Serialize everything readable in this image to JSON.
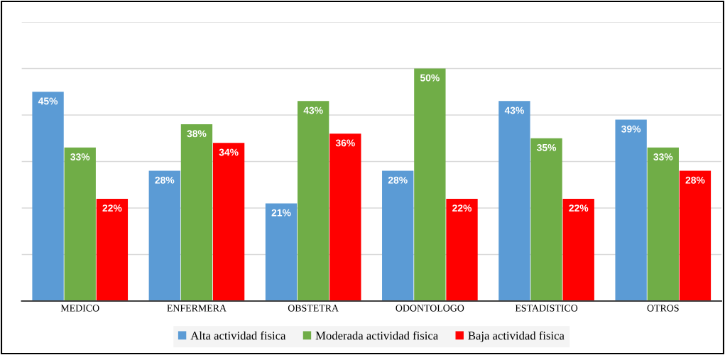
{
  "chart_data": {
    "type": "bar",
    "categories": [
      "MEDICO",
      "ENFERMERA",
      "OBSTETRA",
      "ODONTOLOGO",
      "ESTADISTICO",
      "OTROS"
    ],
    "series": [
      {
        "name": "Alta actividad fisica",
        "color": "#5b9bd5",
        "values": [
          45,
          28,
          21,
          28,
          43,
          39
        ],
        "value_labels": [
          "45%",
          "28%",
          "21%",
          "28%",
          "43%",
          "39%"
        ]
      },
      {
        "name": "Moderada actividad fisica",
        "color": "#70ad47",
        "values": [
          33,
          38,
          43,
          50,
          35,
          33
        ],
        "value_labels": [
          "33%",
          "38%",
          "43%",
          "50%",
          "35%",
          "33%"
        ]
      },
      {
        "name": "Baja actividad fisica",
        "color": "#ff0000",
        "values": [
          22,
          34,
          36,
          22,
          22,
          28
        ],
        "value_labels": [
          "22%",
          "34%",
          "36%",
          "22%",
          "22%",
          "28%"
        ]
      }
    ],
    "ylim": [
      0,
      60
    ],
    "yticks": [
      {
        "value": 0,
        "label": null
      },
      {
        "value": 10,
        "label": null
      },
      {
        "value": 20,
        "label": null
      },
      {
        "value": 30,
        "label": null
      },
      {
        "value": 40,
        "label": null
      },
      {
        "value": 50,
        "label": null
      },
      {
        "value": 60,
        "label": null
      }
    ],
    "tick_labels": "x",
    "grid": "y",
    "legend": "bottom"
  }
}
